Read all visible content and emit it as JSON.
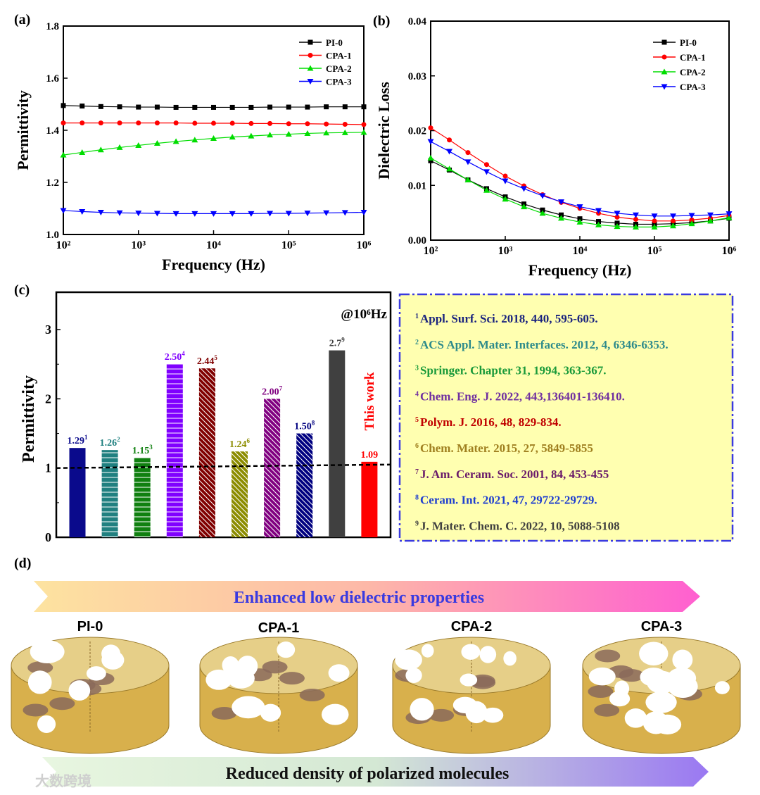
{
  "panel_labels": {
    "a": "(a)",
    "b": "(b)",
    "c": "(c)",
    "d": "(d)"
  },
  "chart_data": [
    {
      "id": "a",
      "type": "line",
      "xscale": "log",
      "xlim": [
        100,
        1000000
      ],
      "ylim": [
        1.0,
        1.8
      ],
      "yticks": [
        1.0,
        1.2,
        1.4,
        1.6,
        1.8
      ],
      "ytick_labels": [
        "1.0",
        "1.2",
        "1.4",
        "1.6",
        "1.8"
      ],
      "xticks": [
        100,
        1000,
        10000,
        100000,
        1000000
      ],
      "xtick_labels": [
        "10²",
        "10³",
        "10⁴",
        "10⁵",
        "10⁶"
      ],
      "xlabel": "Frequency (Hz)",
      "ylabel": "Permittivity",
      "legend_position": "top-right",
      "x": [
        100,
        178,
        316,
        562,
        1000,
        1778,
        3162,
        5623,
        10000,
        17783,
        31623,
        56234,
        100000,
        177828,
        316228,
        562341,
        1000000
      ],
      "series": [
        {
          "name": "PI-0",
          "color": "#000000",
          "marker": "square",
          "values": [
            1.495,
            1.493,
            1.491,
            1.49,
            1.489,
            1.489,
            1.488,
            1.488,
            1.488,
            1.488,
            1.488,
            1.489,
            1.489,
            1.489,
            1.49,
            1.49,
            1.49
          ]
        },
        {
          "name": "CPA-1",
          "color": "#ff0000",
          "marker": "circle",
          "values": [
            1.428,
            1.428,
            1.428,
            1.428,
            1.428,
            1.428,
            1.428,
            1.427,
            1.427,
            1.427,
            1.426,
            1.426,
            1.425,
            1.425,
            1.424,
            1.423,
            1.422
          ]
        },
        {
          "name": "CPA-2",
          "color": "#00dd00",
          "marker": "triangle-up",
          "values": [
            1.305,
            1.315,
            1.325,
            1.334,
            1.342,
            1.35,
            1.357,
            1.363,
            1.369,
            1.374,
            1.378,
            1.382,
            1.385,
            1.388,
            1.39,
            1.391,
            1.392
          ]
        },
        {
          "name": "CPA-3",
          "color": "#0000ff",
          "marker": "triangle-down",
          "values": [
            1.092,
            1.088,
            1.085,
            1.083,
            1.082,
            1.081,
            1.08,
            1.08,
            1.08,
            1.08,
            1.08,
            1.081,
            1.081,
            1.082,
            1.083,
            1.084,
            1.085
          ]
        }
      ]
    },
    {
      "id": "b",
      "type": "line",
      "xscale": "log",
      "xlim": [
        100,
        1000000
      ],
      "ylim": [
        0.0,
        0.04
      ],
      "yticks": [
        0,
        0.01,
        0.02,
        0.03,
        0.04
      ],
      "ytick_labels": [
        "0.00",
        "0.01",
        "0.02",
        "0.03",
        "0.04"
      ],
      "xticks": [
        100,
        1000,
        10000,
        100000,
        1000000
      ],
      "xtick_labels": [
        "10²",
        "10³",
        "10⁴",
        "10⁵",
        "10⁶"
      ],
      "xlabel": "Frequency (Hz)",
      "ylabel": "Dielectric Loss",
      "legend_position": "top-right",
      "x": [
        100,
        178,
        316,
        562,
        1000,
        1778,
        3162,
        5623,
        10000,
        17783,
        31623,
        56234,
        100000,
        177828,
        316228,
        562341,
        1000000
      ],
      "series": [
        {
          "name": "PI-0",
          "color": "#000000",
          "marker": "square",
          "values": [
            0.0145,
            0.0128,
            0.011,
            0.0094,
            0.0079,
            0.0066,
            0.0055,
            0.0046,
            0.0039,
            0.0034,
            0.0031,
            0.0029,
            0.0029,
            0.003,
            0.0032,
            0.0035,
            0.004
          ]
        },
        {
          "name": "CPA-1",
          "color": "#ff0000",
          "marker": "circle",
          "values": [
            0.0205,
            0.0183,
            0.016,
            0.0138,
            0.0117,
            0.0099,
            0.0083,
            0.0069,
            0.0058,
            0.0049,
            0.0042,
            0.0038,
            0.0035,
            0.0035,
            0.0037,
            0.004,
            0.0045
          ]
        },
        {
          "name": "CPA-2",
          "color": "#00dd00",
          "marker": "triangle-up",
          "values": [
            0.015,
            0.013,
            0.011,
            0.0091,
            0.0075,
            0.0061,
            0.0049,
            0.004,
            0.0033,
            0.0028,
            0.0025,
            0.0024,
            0.0024,
            0.0026,
            0.003,
            0.0035,
            0.0041
          ]
        },
        {
          "name": "CPA-3",
          "color": "#0000ff",
          "marker": "triangle-down",
          "values": [
            0.018,
            0.0162,
            0.0143,
            0.0125,
            0.0108,
            0.0094,
            0.0081,
            0.007,
            0.0061,
            0.0054,
            0.0049,
            0.0046,
            0.0044,
            0.0044,
            0.0045,
            0.0046,
            0.0048
          ]
        }
      ]
    },
    {
      "id": "c",
      "type": "bar",
      "ylabel": "Permittivity",
      "ylim": [
        0,
        3.54
      ],
      "yticks": [
        0,
        1,
        2,
        3
      ],
      "ytick_labels": [
        "0",
        "1",
        "2",
        "3"
      ],
      "annotation": "@10⁶Hz",
      "this_work_label": "This work",
      "reference_line": 1.0,
      "bars": [
        {
          "value": 1.29,
          "label": "1.29",
          "ref": "1",
          "color": "#0a0a8c",
          "pattern": "solid"
        },
        {
          "value": 1.26,
          "label": "1.26",
          "ref": "2",
          "color": "#208080",
          "pattern": "hstripe"
        },
        {
          "value": 1.15,
          "label": "1.15",
          "ref": "3",
          "color": "#108010",
          "pattern": "hstripe"
        },
        {
          "value": 2.5,
          "label": "2.50",
          "ref": "4",
          "color": "#8000ff",
          "pattern": "hstripe"
        },
        {
          "value": 2.44,
          "label": "2.44",
          "ref": "5",
          "color": "#800000",
          "pattern": "diag"
        },
        {
          "value": 1.24,
          "label": "1.24",
          "ref": "6",
          "color": "#8c8c00",
          "pattern": "diag"
        },
        {
          "value": 2.0,
          "label": "2.00",
          "ref": "7",
          "color": "#800080",
          "pattern": "diag"
        },
        {
          "value": 1.5,
          "label": "1.50",
          "ref": "8",
          "color": "#000080",
          "pattern": "diag"
        },
        {
          "value": 2.7,
          "label": "2.7",
          "ref": "9",
          "color": "#404040",
          "pattern": "solid"
        },
        {
          "value": 1.09,
          "label": "1.09",
          "ref": "",
          "color": "#ff0000",
          "pattern": "solid"
        }
      ]
    }
  ],
  "references": [
    {
      "num": "1",
      "text": "Appl. Surf. Sci. 2018, 440, 595-605.",
      "color": "#1a237e"
    },
    {
      "num": "2",
      "text": "ACS Appl. Mater. Interfaces. 2012, 4, 6346-6353.",
      "color": "#2e8b8b"
    },
    {
      "num": "3",
      "text": "Springer. Chapter 31, 1994, 363-367.",
      "color": "#1a9a3a"
    },
    {
      "num": "4",
      "text": "Chem. Eng. J. 2022, 443,136401-136410.",
      "color": "#7030a0"
    },
    {
      "num": "5",
      "text": "Polym. J. 2016, 48, 829-834.",
      "color": "#c00000"
    },
    {
      "num": "6",
      "text": "Chem. Mater. 2015, 27, 5849-5855",
      "color": "#a08020"
    },
    {
      "num": "7",
      "text": "J. Am. Ceram. Soc. 2001, 84, 453-455",
      "color": "#6a1b6a"
    },
    {
      "num": "8",
      "text": "Ceram. Int. 2021, 47, 29722-29729.",
      "color": "#1f3fd0"
    },
    {
      "num": "9",
      "text": "J. Mater. Chem. C. 2022, 10, 5088-5108",
      "color": "#404040"
    }
  ],
  "panel_d": {
    "top_arrow_text": "Enhanced low dielectric properties",
    "bottom_arrow_text": "Reduced density of polarized molecules",
    "samples": [
      "PI-0",
      "CPA-1",
      "CPA-2",
      "CPA-3"
    ],
    "pore_counts": [
      7,
      9,
      11,
      15
    ]
  },
  "watermark": "大数跨境"
}
